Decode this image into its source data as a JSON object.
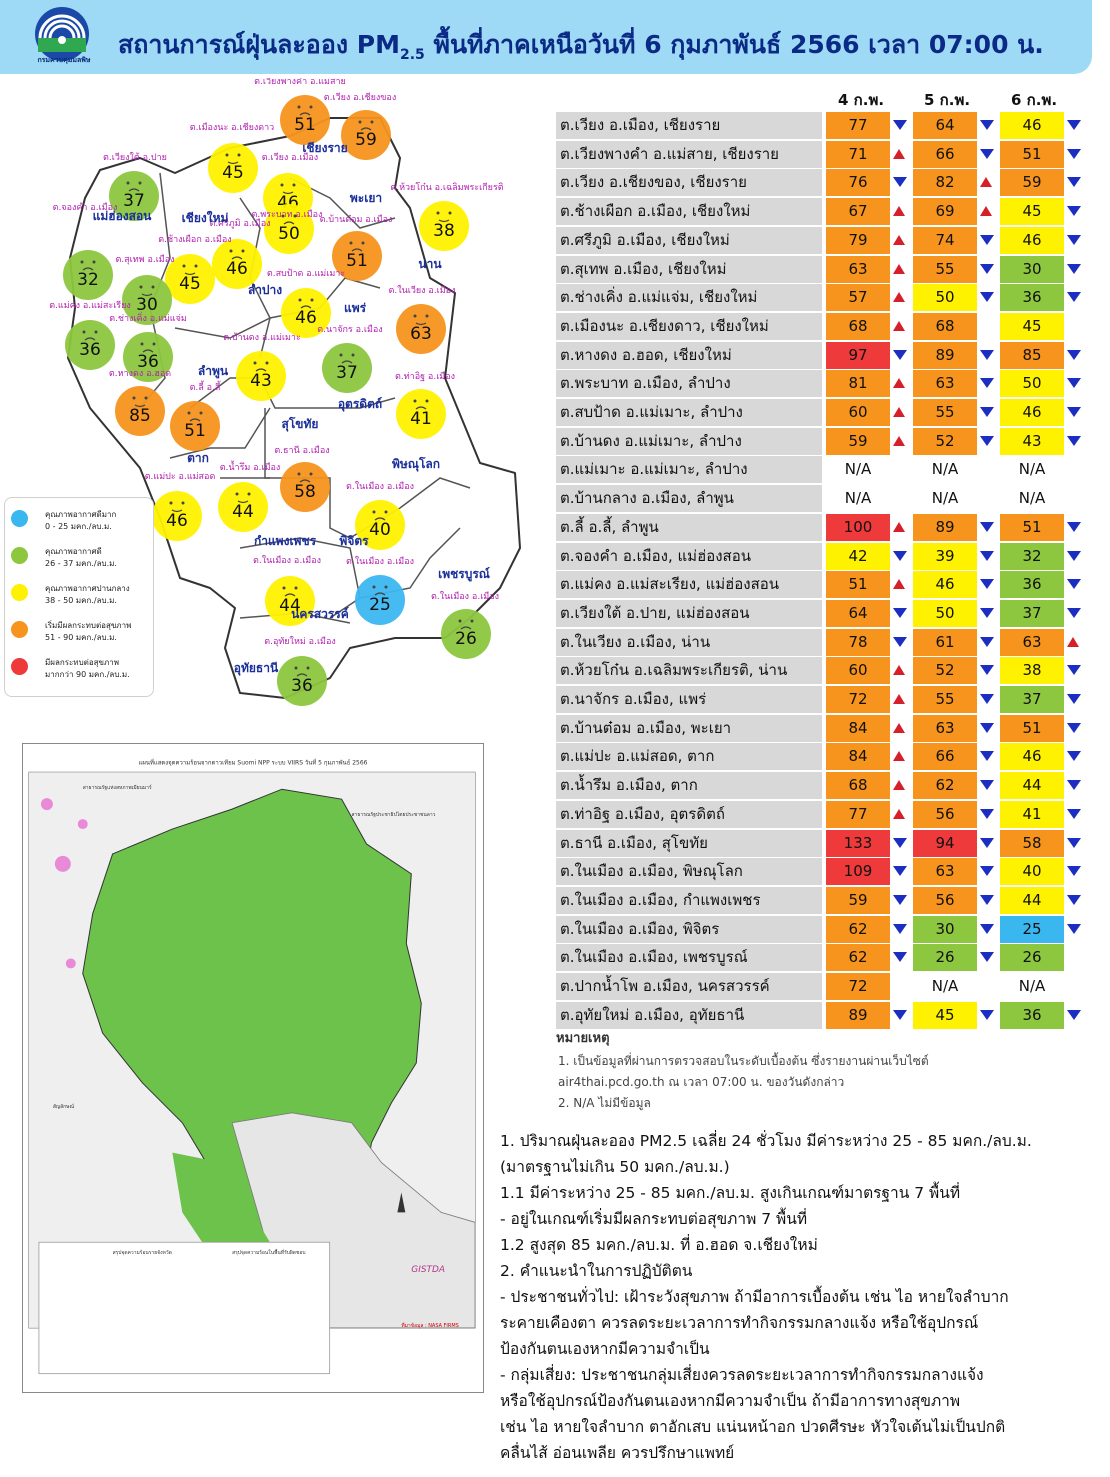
{
  "header": {
    "title_pre": "สถานการณ์ฝุ่นละออง PM",
    "title_sub": "2.5",
    "title_post": " พื้นที่ภาคเหนือวันที่ 6 กุมภาพันธ์ 2566 เวลา 07:00 น.",
    "logo_text": "กรมควบคุมมลพิษ"
  },
  "colors": {
    "blue": "#3bb7f0",
    "green": "#8dc63f",
    "yellow": "#fff200",
    "orange": "#f7941d",
    "red": "#ee3a3a"
  },
  "legend": [
    {
      "title": "คุณภาพอากาศดีมาก",
      "range": "0 - 25 มคก./ลบ.ม.",
      "color": "#3bb7f0"
    },
    {
      "title": "คุณภาพอากาศดี",
      "range": "26 - 37 มคก./ลบ.ม.",
      "color": "#8dc63f"
    },
    {
      "title": "คุณภาพอากาศปานกลาง",
      "range": "38 - 50 มคก./ลบ.ม.",
      "color": "#fff200"
    },
    {
      "title": "เริ่มมีผลกระทบต่อสุขภาพ",
      "range": "51 - 90 มคก./ลบ.ม.",
      "color": "#f7941d"
    },
    {
      "title": "มีผลกระทบต่อสุขภาพ",
      "range": "มากกว่า 90 มคก./ลบ.ม.",
      "color": "#ee3a3a"
    }
  ],
  "map": {
    "provinces": [
      "เชียงราย",
      "แม่ฮ่องสอน",
      "เชียงใหม่",
      "พะเยา",
      "น่าน",
      "ลำปาง",
      "แพร่",
      "ลำพูน",
      "อุตรดิตถ์",
      "สุโขทัย",
      "ตาก",
      "พิษณุโลก",
      "กำแพงเพชร",
      "พิจิตร",
      "เพชรบูรณ์",
      "นครสวรรค์",
      "อุทัยธานี"
    ],
    "stations": [
      {
        "v": "51",
        "label": "ต.เวียงพางคำ อ.แม่สาย",
        "c": "orange"
      },
      {
        "v": "59",
        "label": "ต.เวียง อ.เชียงของ",
        "c": "orange"
      },
      {
        "v": "45",
        "label": "ต.เมืองนะ อ.เชียงดาว",
        "c": "yellow"
      },
      {
        "v": "46",
        "label": "ต.เวียง อ.เมือง",
        "c": "yellow"
      },
      {
        "v": "37",
        "label": "ต.เวียงใต้ อ.ปาย",
        "c": "green"
      },
      {
        "v": "38",
        "label": "ต.ห้วยโก๋น อ.เฉลิมพระเกียรติ",
        "c": "yellow"
      },
      {
        "v": "50",
        "label": "ต.พระบาท อ.เมือง",
        "c": "yellow"
      },
      {
        "v": "51",
        "label": "ต.บ้านต๋อม อ.เมือง",
        "c": "orange"
      },
      {
        "v": "46",
        "label": "ต.ศรีภูมิ อ.เมือง",
        "c": "yellow"
      },
      {
        "v": "45",
        "label": "ต.ช้างเผือก อ.เมือง",
        "c": "yellow"
      },
      {
        "v": "32",
        "label": "ต.จองคำ อ.เมือง",
        "c": "green"
      },
      {
        "v": "30",
        "label": "ต.สุเทพ อ.เมือง",
        "c": "green"
      },
      {
        "v": "46",
        "label": "ต.สบป้าด อ.แม่เมาะ",
        "c": "yellow"
      },
      {
        "v": "63",
        "label": "ต.ในเวียง อ.เมือง",
        "c": "orange"
      },
      {
        "v": "36",
        "label": "ต.แม่คง อ.แม่สะเรียง",
        "c": "green"
      },
      {
        "v": "36",
        "label": "ต.ช่างเคิ่ง อ.แม่แจ่ม",
        "c": "green"
      },
      {
        "v": "43",
        "label": "ต.บ้านดง อ.แม่เมาะ",
        "c": "yellow"
      },
      {
        "v": "37",
        "label": "ต.นาจักร อ.เมือง",
        "c": "green"
      },
      {
        "v": "85",
        "label": "ต.หางดง อ.ฮอด",
        "c": "orange"
      },
      {
        "v": "51",
        "label": "ต.ลี้ อ.ลี้",
        "c": "orange"
      },
      {
        "v": "41",
        "label": "ต.ท่าอิฐ อ.เมือง",
        "c": "yellow"
      },
      {
        "v": "58",
        "label": "ต.ธานี อ.เมือง",
        "c": "orange"
      },
      {
        "v": "46",
        "label": "ต.แม่ปะ อ.แม่สอด",
        "c": "yellow"
      },
      {
        "v": "44",
        "label": "ต.น้ำรึม อ.เมือง",
        "c": "yellow"
      },
      {
        "v": "40",
        "label": "ต.ในเมือง อ.เมือง",
        "c": "yellow"
      },
      {
        "v": "44",
        "label": "ต.ในเมือง อ.เมือง",
        "c": "yellow"
      },
      {
        "v": "25",
        "label": "ต.ในเมือง อ.เมือง",
        "c": "blue"
      },
      {
        "v": "26",
        "label": "ต.ในเมือง อ.เมือง",
        "c": "green"
      },
      {
        "v": "36",
        "label": "ต.อุทัยใหม่ อ.เมือง",
        "c": "green"
      }
    ]
  },
  "satellite": {
    "title": "แผนที่แสดงจุดความร้อนจากดาวเทียม Suomi NPP ระบบ VIIRS วันที่ 5 กุมภาพันธ์ 2566",
    "box1_title": "สรุปจุดความร้อนรายจังหวัด",
    "box2_title": "สรุปจุดความร้อนในพื้นที่รับผิดชอบ",
    "label_left": "สาธารณรัฐแห่งสหภาพเมียนมาร์",
    "label_right": "สาธารณรัฐประชาธิปไตยประชาชนลาว",
    "legend_title": "สัญลักษณ์",
    "gistda": "GISTDA",
    "source": "ที่มาข้อมูล : NASA FIRMS"
  },
  "table": {
    "days": [
      "4 ก.พ.",
      "5 ก.พ.",
      "6 ก.พ."
    ],
    "rows": [
      {
        "name": "ต.เวียง อ.เมือง, เชียงราย",
        "v": [
          "77",
          "64",
          "46"
        ],
        "a": [
          "dn",
          "dn",
          "dn"
        ]
      },
      {
        "name": "ต.เวียงพางคำ อ.แม่สาย, เชียงราย",
        "v": [
          "71",
          "66",
          "51"
        ],
        "a": [
          "up",
          "dn",
          "dn"
        ]
      },
      {
        "name": "ต.เวียง อ.เชียงของ, เชียงราย",
        "v": [
          "76",
          "82",
          "59"
        ],
        "a": [
          "dn",
          "up",
          "dn"
        ]
      },
      {
        "name": "ต.ช้างเผือก อ.เมือง, เชียงใหม่",
        "v": [
          "67",
          "69",
          "45"
        ],
        "a": [
          "up",
          "up",
          "dn"
        ]
      },
      {
        "name": "ต.ศรีภูมิ อ.เมือง, เชียงใหม่",
        "v": [
          "79",
          "74",
          "46"
        ],
        "a": [
          "up",
          "dn",
          "dn"
        ]
      },
      {
        "name": "ต.สุเทพ อ.เมือง, เชียงใหม่",
        "v": [
          "63",
          "55",
          "30"
        ],
        "a": [
          "up",
          "dn",
          "dn"
        ]
      },
      {
        "name": "ต.ช่างเคิ่ง อ.แม่แจ่ม, เชียงใหม่",
        "v": [
          "57",
          "50",
          "36"
        ],
        "a": [
          "up",
          "dn",
          "dn"
        ]
      },
      {
        "name": "ต.เมืองนะ อ.เชียงดาว, เชียงใหม่",
        "v": [
          "68",
          "68",
          "45"
        ],
        "a": [
          "up",
          "",
          ""
        ]
      },
      {
        "name": "ต.หางดง อ.ฮอด, เชียงใหม่",
        "v": [
          "97",
          "89",
          "85"
        ],
        "a": [
          "dn",
          "dn",
          "dn"
        ]
      },
      {
        "name": "ต.พระบาท อ.เมือง, ลำปาง",
        "v": [
          "81",
          "63",
          "50"
        ],
        "a": [
          "up",
          "dn",
          "dn"
        ]
      },
      {
        "name": "ต.สบป้าด อ.แม่เมาะ, ลำปาง",
        "v": [
          "60",
          "55",
          "46"
        ],
        "a": [
          "up",
          "dn",
          "dn"
        ]
      },
      {
        "name": "ต.บ้านดง อ.แม่เมาะ, ลำปาง",
        "v": [
          "59",
          "52",
          "43"
        ],
        "a": [
          "up",
          "dn",
          "dn"
        ]
      },
      {
        "name": "ต.แม่เมาะ อ.แม่เมาะ, ลำปาง",
        "v": [
          "N/A",
          "N/A",
          "N/A"
        ],
        "a": [
          "",
          "",
          ""
        ]
      },
      {
        "name": "ต.บ้านกลาง อ.เมือง, ลำพูน",
        "v": [
          "N/A",
          "N/A",
          "N/A"
        ],
        "a": [
          "",
          "",
          ""
        ]
      },
      {
        "name": "ต.ลี้ อ.ลี้, ลำพูน",
        "v": [
          "100",
          "89",
          "51"
        ],
        "a": [
          "up",
          "dn",
          "dn"
        ]
      },
      {
        "name": "ต.จองคำ อ.เมือง, แม่ฮ่องสอน",
        "v": [
          "42",
          "39",
          "32"
        ],
        "a": [
          "dn",
          "dn",
          "dn"
        ]
      },
      {
        "name": "ต.แม่คง อ.แม่สะเรียง, แม่ฮ่องสอน",
        "v": [
          "51",
          "46",
          "36"
        ],
        "a": [
          "up",
          "dn",
          "dn"
        ]
      },
      {
        "name": "ต.เวียงใต้ อ.ปาย, แม่ฮ่องสอน",
        "v": [
          "64",
          "50",
          "37"
        ],
        "a": [
          "dn",
          "dn",
          "dn"
        ]
      },
      {
        "name": "ต.ในเวียง อ.เมือง, น่าน",
        "v": [
          "78",
          "61",
          "63"
        ],
        "a": [
          "dn",
          "dn",
          "up"
        ]
      },
      {
        "name": "ต.ห้วยโก๋น อ.เฉลิมพระเกียรติ, น่าน",
        "v": [
          "60",
          "52",
          "38"
        ],
        "a": [
          "up",
          "dn",
          "dn"
        ]
      },
      {
        "name": "ต.นาจักร อ.เมือง, แพร่",
        "v": [
          "72",
          "55",
          "37"
        ],
        "a": [
          "up",
          "dn",
          "dn"
        ]
      },
      {
        "name": "ต.บ้านต๋อม อ.เมือง, พะเยา",
        "v": [
          "84",
          "63",
          "51"
        ],
        "a": [
          "up",
          "dn",
          "dn"
        ]
      },
      {
        "name": "ต.แม่ปะ อ.แม่สอด, ตาก",
        "v": [
          "84",
          "66",
          "46"
        ],
        "a": [
          "up",
          "dn",
          "dn"
        ]
      },
      {
        "name": "ต.น้ำรึม อ.เมือง, ตาก",
        "v": [
          "68",
          "62",
          "44"
        ],
        "a": [
          "up",
          "dn",
          "dn"
        ]
      },
      {
        "name": "ต.ท่าอิฐ อ.เมือง, อุตรดิตถ์",
        "v": [
          "77",
          "56",
          "41"
        ],
        "a": [
          "up",
          "dn",
          "dn"
        ]
      },
      {
        "name": "ต.ธานี อ.เมือง, สุโขทัย",
        "v": [
          "133",
          "94",
          "58"
        ],
        "a": [
          "dn",
          "dn",
          "dn"
        ]
      },
      {
        "name": "ต.ในเมือง อ.เมือง, พิษณุโลก",
        "v": [
          "109",
          "63",
          "40"
        ],
        "a": [
          "dn",
          "dn",
          "dn"
        ]
      },
      {
        "name": "ต.ในเมือง อ.เมือง, กำแพงเพชร",
        "v": [
          "59",
          "56",
          "44"
        ],
        "a": [
          "dn",
          "dn",
          "dn"
        ]
      },
      {
        "name": "ต.ในเมือง อ.เมือง, พิจิตร",
        "v": [
          "62",
          "30",
          "25"
        ],
        "a": [
          "dn",
          "dn",
          "dn"
        ]
      },
      {
        "name": "ต.ในเมือง อ.เมือง, เพชรบูรณ์",
        "v": [
          "62",
          "26",
          "26"
        ],
        "a": [
          "dn",
          "dn",
          ""
        ]
      },
      {
        "name": "ต.ปากน้ำโพ อ.เมือง, นครสวรรค์",
        "v": [
          "72",
          "N/A",
          "N/A"
        ],
        "a": [
          "",
          "",
          ""
        ]
      },
      {
        "name": "ต.อุทัยใหม่ อ.เมือง, อุทัยธานี",
        "v": [
          "89",
          "45",
          "36"
        ],
        "a": [
          "dn",
          "dn",
          "dn"
        ]
      }
    ]
  },
  "notes": {
    "title": "หมายเหตุ",
    "n1a": "1. เป็นข้อมูลที่ผ่านการตรวจสอบในระดับเบื้องต้น ซึ่งรายงานผ่านเว็บไซต์",
    "n1b": "air4thai.pcd.go.th ณ เวลา 07:00 น. ของวันดังกล่าว",
    "n2": "2. N/A ไม่มีข้อมูล"
  },
  "summary": [
    "1. ปริมาณฝุ่นละออง PM2.5 เฉลี่ย 24 ชั่วโมง มีค่าระหว่าง 25 - 85 มคก./ลบ.ม.",
    "(มาตรฐานไม่เกิน 50 มคก./ลบ.ม.)",
    "      1.1 มีค่าระหว่าง 25 - 85 มคก./ลบ.ม. สูงเกินเกณฑ์มาตรฐาน 7 พื้นที่",
    "           - อยู่ในเกณฑ์เริ่มมีผลกระทบต่อสุขภาพ 7 พื้นที่",
    "      1.2 สูงสุด 85 มคก./ลบ.ม. ที่ อ.ฮอด จ.เชียงใหม่",
    "2. คำแนะนำในการปฏิบัติตน",
    "- ประชาชนทั่วไป: เฝ้าระวังสุขภาพ ถ้ามีอาการเบื้องต้น เช่น ไอ หายใจลำบาก",
    "   ระคายเคืองตา ควรลดระยะเวลาการทำกิจกรรมกลางแจ้ง หรือใช้อุปกรณ์",
    "   ป้องกันตนเองหากมีความจำเป็น",
    "- กลุ่มเสี่ยง: ประชาชนกลุ่มเสี่ยงควรลดระยะเวลาการทำกิจกรรมกลางแจ้ง",
    "   หรือใช้อุปกรณ์ป้องกันตนเองหากมีความจำเป็น ถ้ามีอาการทางสุขภาพ",
    "   เช่น ไอ หายใจลำบาก ตาอักเสบ แน่นหน้าอก ปวดศีรษะ หัวใจเต้นไม่เป็นปกติ",
    "   คลื่นไส้ อ่อนเพลีย ควรปรึกษาแพทย์"
  ]
}
